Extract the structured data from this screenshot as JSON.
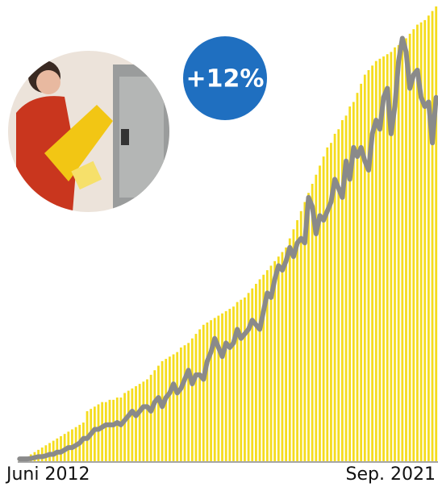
{
  "chart_data": {
    "type": "bar",
    "annotation": "+12%",
    "categories": [
      "Juni 2012",
      null,
      null,
      null,
      null,
      null,
      null,
      null,
      null,
      null,
      null,
      null,
      null,
      null,
      null,
      null,
      null,
      null,
      null,
      null,
      null,
      null,
      null,
      null,
      null,
      null,
      null,
      null,
      null,
      null,
      null,
      null,
      null,
      null,
      null,
      null,
      null,
      null,
      null,
      null,
      null,
      null,
      null,
      null,
      null,
      null,
      null,
      null,
      null,
      null,
      null,
      null,
      null,
      null,
      null,
      null,
      null,
      null,
      null,
      null,
      null,
      null,
      null,
      null,
      null,
      null,
      null,
      null,
      null,
      null,
      null,
      null,
      null,
      null,
      null,
      null,
      null,
      null,
      null,
      null,
      null,
      null,
      null,
      null,
      null,
      null,
      null,
      null,
      null,
      null,
      null,
      null,
      null,
      null,
      null,
      null,
      null,
      null,
      null,
      null,
      null,
      null,
      null,
      null,
      null,
      null,
      null,
      null,
      null,
      null,
      null,
      "Sep. 2021"
    ],
    "ylim": [
      0,
      100
    ],
    "series": [
      {
        "type": "bar",
        "color": "#f5dc1e",
        "values": [
          0.5,
          0.8,
          1,
          1.5,
          2,
          2.5,
          3,
          3.5,
          4,
          4.5,
          5,
          5.5,
          6,
          6.5,
          7,
          7.5,
          8,
          8.5,
          11,
          11.5,
          12,
          12.5,
          13,
          13,
          13.5,
          13.5,
          14,
          14,
          15,
          15.5,
          16,
          16.5,
          17,
          17.5,
          18,
          19,
          20,
          21,
          22,
          22.5,
          23,
          23.5,
          24,
          25,
          25.5,
          26,
          27,
          28,
          29,
          30,
          30.5,
          31,
          31.5,
          32,
          32.5,
          33,
          33.5,
          34,
          35,
          35.5,
          36,
          37,
          38,
          39,
          40,
          41,
          42,
          43,
          44,
          45,
          46,
          47,
          49,
          51,
          53,
          55,
          57,
          59,
          61,
          63,
          65,
          67,
          69,
          70,
          72,
          73,
          75,
          76,
          78,
          79,
          81,
          83,
          85,
          86,
          87,
          88,
          88.5,
          89,
          89.5,
          90,
          91,
          91.5,
          92,
          93,
          94,
          95,
          96,
          96.5,
          97,
          98,
          99,
          100
        ]
      },
      {
        "type": "line",
        "color": "#8a8a8a",
        "values": [
          0.5,
          0.5,
          0.5,
          0.6,
          0.8,
          1,
          1,
          1.2,
          1.5,
          1.5,
          2,
          2,
          2.5,
          3,
          3,
          3.5,
          4,
          5,
          5,
          6,
          7,
          7,
          7.5,
          8,
          8,
          8,
          8.5,
          8,
          9,
          10,
          11,
          10,
          11,
          12,
          12,
          11,
          13,
          14,
          12,
          14,
          15,
          17,
          15,
          16,
          18,
          20,
          17,
          19,
          19,
          18,
          22,
          24,
          27,
          25,
          23,
          26,
          25,
          26,
          29,
          27,
          28,
          29,
          31,
          30,
          29,
          33,
          37,
          36,
          40,
          43,
          42,
          44,
          47,
          45,
          48,
          49,
          48,
          58,
          56,
          50,
          54,
          53,
          55,
          57,
          62,
          60,
          58,
          66,
          62,
          69,
          67,
          69,
          66,
          64,
          72,
          75,
          73,
          80,
          82,
          72,
          78,
          88,
          93,
          90,
          82,
          85,
          86,
          80,
          78,
          79,
          70,
          80
        ]
      }
    ]
  }
}
